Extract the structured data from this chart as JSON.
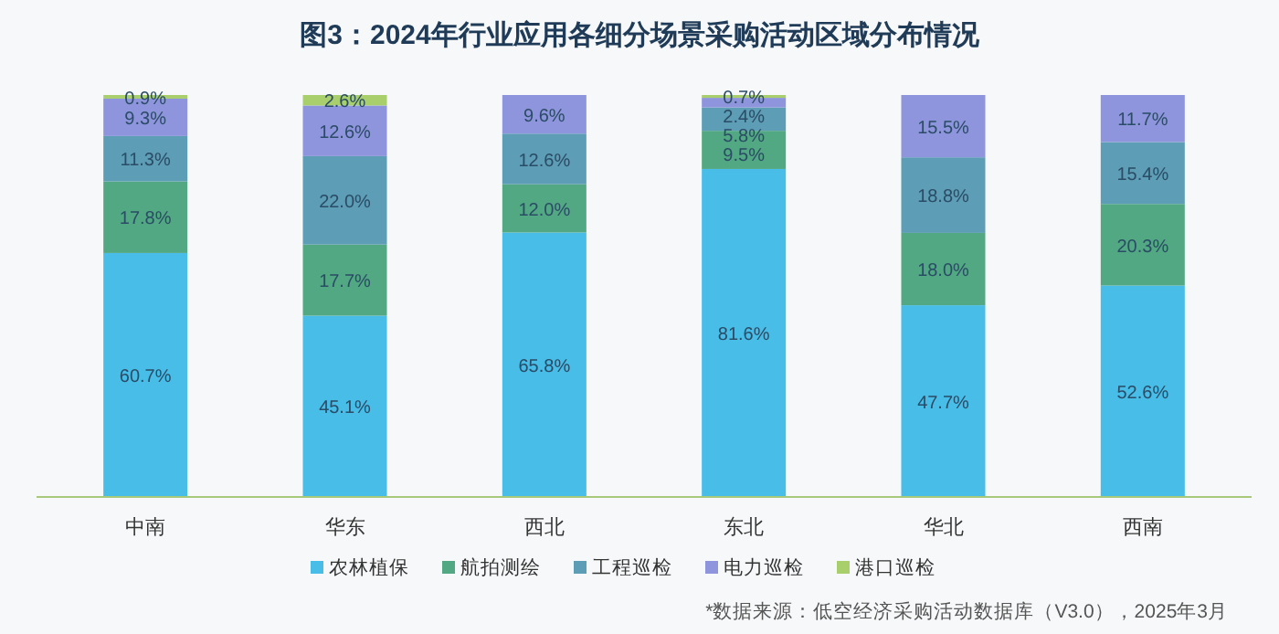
{
  "chart_data": {
    "type": "bar",
    "stacked": true,
    "legend": "bottom",
    "title": "图3：2024年行业应用各细分场景采购活动区域分布情况",
    "categories": [
      "中南",
      "华东",
      "西北",
      "东北",
      "华北",
      "西南"
    ],
    "series": [
      {
        "name": "农林植保",
        "color": "#47bde8",
        "values": [
          60.7,
          45.1,
          65.8,
          81.6,
          47.7,
          52.6
        ],
        "value_labels": [
          "60.7%",
          "45.1%",
          "65.8%",
          "81.6%",
          "47.7%",
          "52.6%"
        ]
      },
      {
        "name": "航拍测绘",
        "color": "#52a882",
        "values": [
          17.8,
          17.7,
          12.0,
          9.5,
          18.0,
          20.3
        ],
        "value_labels": [
          "17.8%",
          "17.7%",
          "12.0%",
          "9.5%",
          "18.0%",
          "20.3%"
        ]
      },
      {
        "name": "工程巡检",
        "color": "#5d9db5",
        "values": [
          11.3,
          22.0,
          12.6,
          5.8,
          18.8,
          15.4
        ],
        "value_labels": [
          "11.3%",
          "22.0%",
          "12.6%",
          "5.8%",
          "18.8%",
          "15.4%"
        ]
      },
      {
        "name": "电力巡检",
        "color": "#8e95dc",
        "values": [
          9.3,
          12.6,
          9.6,
          2.4,
          15.5,
          11.7
        ],
        "value_labels": [
          "9.3%",
          "12.6%",
          "9.6%",
          "2.4%",
          "15.5%",
          "11.7%"
        ]
      },
      {
        "name": "港口巡检",
        "color": "#a9cf6c",
        "values": [
          0.9,
          2.6,
          null,
          0.7,
          null,
          null
        ],
        "value_labels": [
          "0.9%",
          "2.6%",
          null,
          "0.7%",
          null,
          null
        ]
      }
    ],
    "annotations": [
      "*数据来源：低空经济采购活动数据库（V3.0），2025年3月"
    ]
  }
}
